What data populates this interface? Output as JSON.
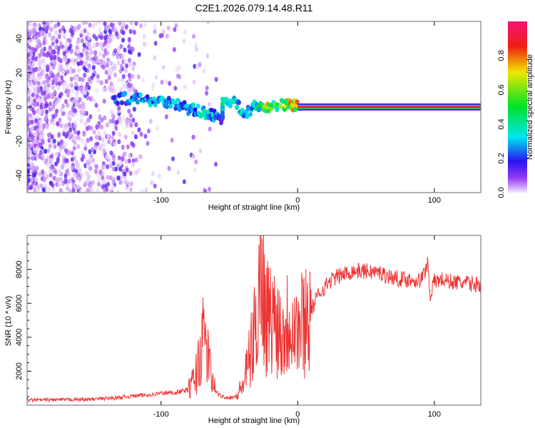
{
  "chart_data": [
    {
      "type": "heatmap",
      "title": "C2E1.2026.079.14.48.R11",
      "xlabel": "Height of straight line (km)",
      "ylabel": "Frequency (Hz)",
      "xlim": [
        -198,
        134
      ],
      "ylim": [
        -50,
        50
      ],
      "xticks": [
        -100,
        0,
        100
      ],
      "yticks": [
        -40,
        -20,
        0,
        20,
        40
      ],
      "colorbar": {
        "label": "Normalized spectral amplitude",
        "range": [
          0,
          1
        ],
        "ticks": [
          "0.0",
          "0.2",
          "0.4",
          "0.6",
          "0.8"
        ]
      },
      "ridge": [
        {
          "x": -135,
          "f": 5,
          "amp": 0.25
        },
        {
          "x": -120,
          "f": 5,
          "amp": 0.3
        },
        {
          "x": -110,
          "f": 4,
          "amp": 0.35
        },
        {
          "x": -100,
          "f": 4,
          "amp": 0.35
        },
        {
          "x": -90,
          "f": 2,
          "amp": 0.35
        },
        {
          "x": -80,
          "f": -1,
          "amp": 0.3
        },
        {
          "x": -70,
          "f": -3,
          "amp": 0.4
        },
        {
          "x": -62,
          "f": -5,
          "amp": 0.35
        },
        {
          "x": -55,
          "f": -7,
          "amp": 0.2
        },
        {
          "x": -55,
          "f": 4,
          "amp": 0.4
        },
        {
          "x": -45,
          "f": 2,
          "amp": 0.4
        },
        {
          "x": -38,
          "f": -4,
          "amp": 0.35
        },
        {
          "x": -30,
          "f": 1,
          "amp": 0.4
        },
        {
          "x": -22,
          "f": 0,
          "amp": 0.7
        },
        {
          "x": -10,
          "f": 1,
          "amp": 0.6
        },
        {
          "x": -5,
          "f": 2,
          "amp": 0.75
        },
        {
          "x": 0,
          "f": 0,
          "amp": 0.85
        }
      ],
      "carrier": {
        "x_from": 0,
        "x_to": 134,
        "f": 0,
        "amp": 0.9
      }
    },
    {
      "type": "line",
      "xlabel": "Height of straight line (km)",
      "ylabel": "SNR (10 * v/v)",
      "xlim": [
        -198,
        134
      ],
      "ylim": [
        0,
        10000
      ],
      "xticks": [
        -100,
        0,
        100
      ],
      "yticks": [
        2000,
        4000,
        6000,
        8000
      ],
      "color": "#ee3333",
      "x": [
        -198,
        -170,
        -150,
        -130,
        -120,
        -110,
        -100,
        -90,
        -80,
        -75,
        -72,
        -68,
        -65,
        -62,
        -58,
        -52,
        -45,
        -40,
        -36,
        -32,
        -29,
        -27,
        -24,
        -20,
        -16,
        -12,
        -8,
        -4,
        0,
        5,
        10,
        15,
        20,
        25,
        30,
        40,
        50,
        60,
        70,
        80,
        90,
        93,
        95,
        97,
        100,
        105,
        110,
        120,
        134
      ],
      "y": [
        300,
        320,
        350,
        450,
        550,
        600,
        700,
        750,
        900,
        1600,
        2800,
        4200,
        2500,
        1200,
        600,
        450,
        500,
        1200,
        2500,
        4000,
        6000,
        9500,
        5500,
        5000,
        5200,
        4300,
        4800,
        5600,
        4300,
        5200,
        5600,
        6500,
        7000,
        7400,
        7600,
        7900,
        7900,
        7800,
        7500,
        7400,
        7350,
        7800,
        8500,
        6500,
        7300,
        7400,
        7300,
        7200,
        7100
      ]
    }
  ]
}
